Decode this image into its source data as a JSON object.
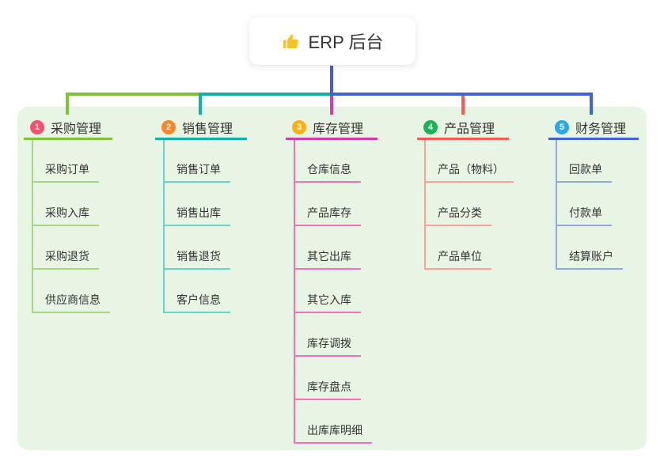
{
  "root": {
    "label": "ERP 后台",
    "icon": "thumbs-up-icon",
    "icon_color": "#f7c325"
  },
  "colors": {
    "page_background": "#ffffff",
    "canvas_background": "#e9f5e4",
    "trunk": "#4a5bd0",
    "text": "#333333"
  },
  "branches": [
    {
      "index": "1",
      "label": "采购管理",
      "badge_color": "#f4516c",
      "line_color": "#7fc437",
      "child_line_color": "#a8d580",
      "children": [
        "采购订单",
        "采购入库",
        "采购退货",
        "供应商信息"
      ]
    },
    {
      "index": "2",
      "label": "销售管理",
      "badge_color": "#f9862b",
      "line_color": "#10b1a6",
      "child_line_color": "#66d4c6",
      "children": [
        "销售订单",
        "销售出库",
        "销售退货",
        "客户信息"
      ]
    },
    {
      "index": "3",
      "label": "库存管理",
      "badge_color": "#fbb016",
      "line_color": "#d43da5",
      "child_line_color": "#f072bb",
      "children": [
        "仓库信息",
        "产品库存",
        "其它出库",
        "其它入库",
        "库存调拨",
        "库存盘点",
        "出库库明细"
      ]
    },
    {
      "index": "4",
      "label": "产品管理",
      "badge_color": "#1eb257",
      "line_color": "#f95b51",
      "child_line_color": "#fda095",
      "children": [
        "产品（物料）",
        "产品分类",
        "产品单位"
      ]
    },
    {
      "index": "5",
      "label": "财务管理",
      "badge_color": "#2ba7e6",
      "line_color": "#3f63d8",
      "child_line_color": "#93a7e6",
      "children": [
        "回款单",
        "付款单",
        "结算账户"
      ]
    }
  ]
}
